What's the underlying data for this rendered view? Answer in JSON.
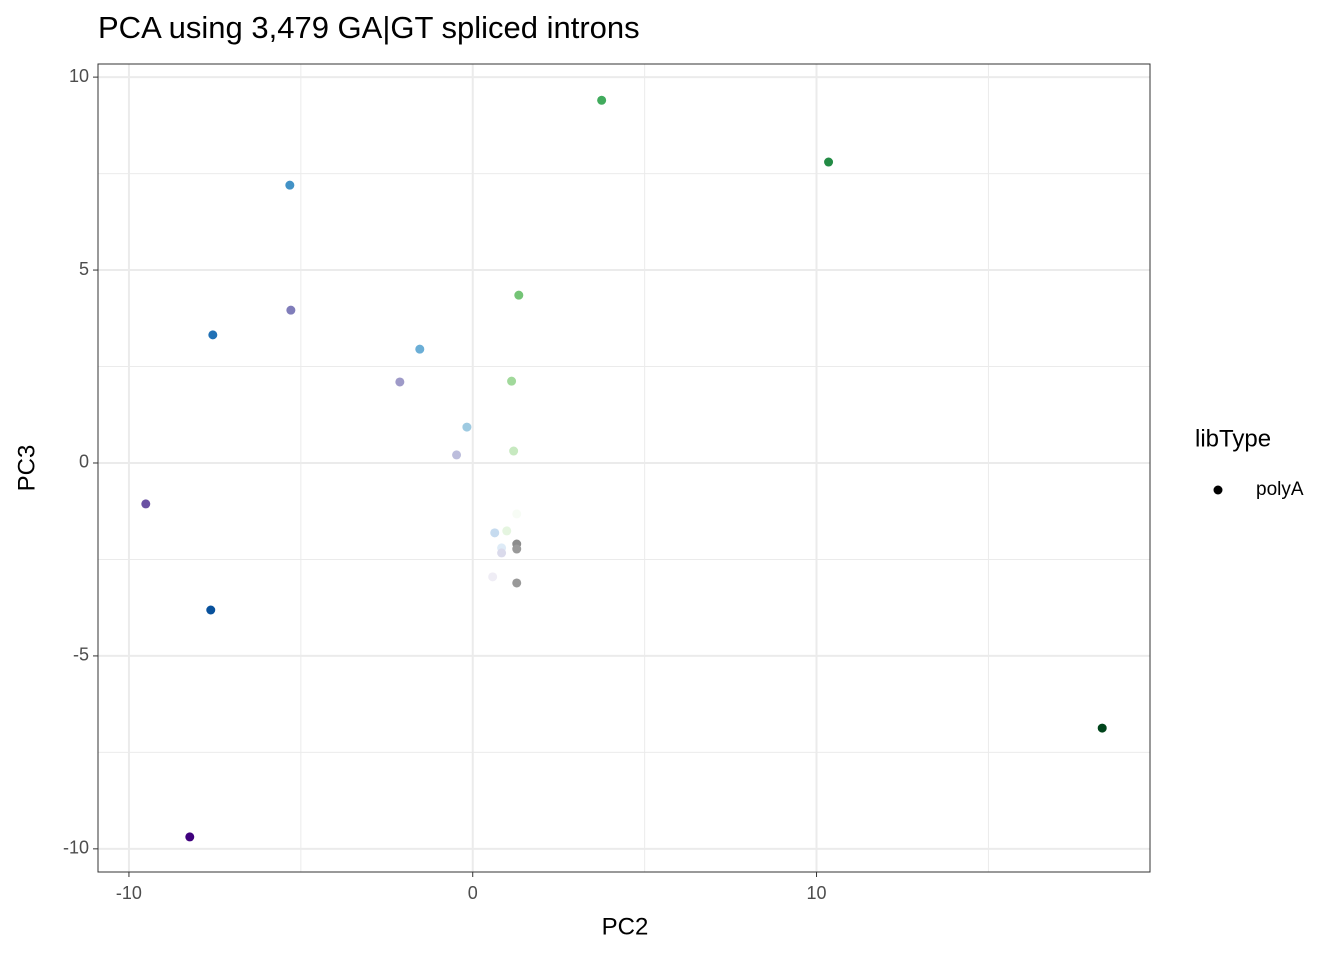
{
  "chart_data": {
    "type": "scatter",
    "title": "PCA using 3,479 GA|GT spliced introns",
    "x_label": "PC2",
    "y_label": "PC3",
    "xlim": [
      -10.9,
      19.7
    ],
    "ylim": [
      -10.6,
      10.34
    ],
    "xticks": [
      -10,
      0,
      10
    ],
    "yticks": [
      -10,
      -5,
      0,
      5,
      10
    ],
    "x_minor_grid": [
      -5,
      5,
      15
    ],
    "y_minor_grid": [
      -7.5,
      -2.5,
      2.5,
      7.5
    ],
    "grid": true,
    "legend_title": "libType",
    "legend_position": "right",
    "series": [
      {
        "name": "polyA",
        "color": "#000000",
        "x": [
          3.75,
          10.35,
          -5.32,
          1.34,
          -7.56,
          -5.29,
          -1.54,
          1.13,
          -2.12,
          -0.17,
          -0.47,
          1.19,
          -9.51,
          1.28,
          0.64,
          0.99,
          1.28,
          1.28,
          0.84,
          0.84,
          0.58,
          1.28,
          -7.62,
          18.31,
          -8.23
        ],
        "values": [
          9.4,
          7.8,
          7.2,
          4.35,
          3.32,
          3.96,
          2.95,
          2.12,
          2.1,
          0.93,
          0.21,
          0.31,
          -1.06,
          -1.32,
          -1.81,
          -1.76,
          -2.1,
          -2.23,
          -2.2,
          -2.33,
          -2.95,
          -3.11,
          -3.81,
          -6.87,
          -9.69
        ],
        "point_colors": [
          "#41ab5d",
          "#238b45",
          "#4292c6",
          "#74c476",
          "#2171b5",
          "#807dba",
          "#6baed6",
          "#a1d99b",
          "#9e9ac8",
          "#9ecae1",
          "#bcbddc",
          "#c7e9c0",
          "#6a51a3",
          "#f7fcf5",
          "#c6dbef",
          "#e5f5e0",
          "#8c8c8c",
          "#999999",
          "#deebf7",
          "#dadaeb",
          "#efedf5",
          "#999999",
          "#08519c",
          "#00441b",
          "#3f007d"
        ]
      }
    ]
  }
}
